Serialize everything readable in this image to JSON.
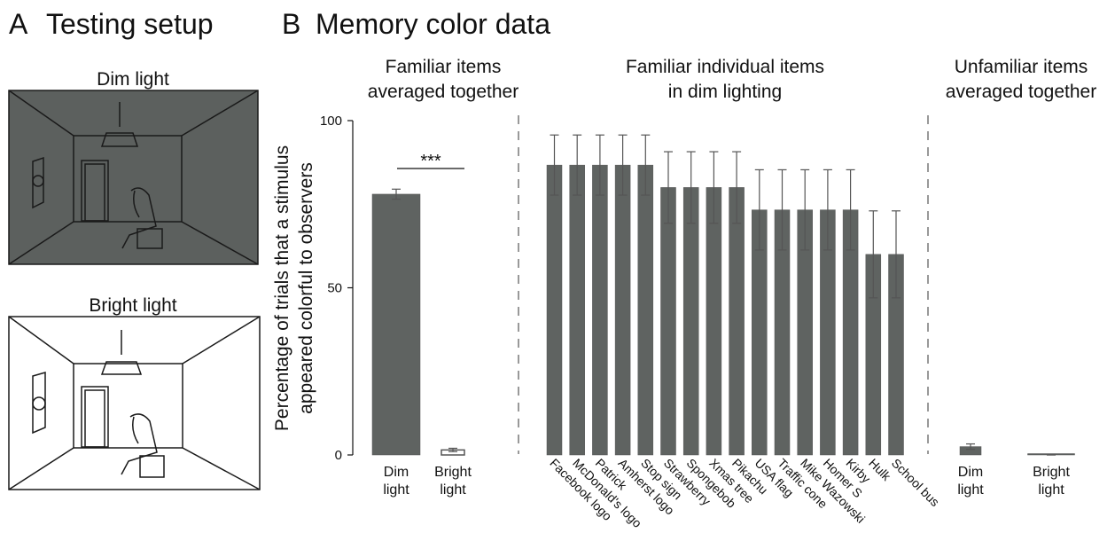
{
  "panels": [
    {
      "letter": "A",
      "title": "Testing setup",
      "rooms": [
        "Dim light",
        "Bright light"
      ]
    },
    {
      "letter": "B",
      "title": "Memory color data"
    }
  ],
  "chart_data": [
    {
      "type": "bar",
      "title": [
        "Familiar items",
        "averaged together"
      ],
      "ylabel": [
        "Percentage of trials that a stimulus",
        "appeared colorful to observers"
      ],
      "categories": [
        "Dim light",
        "Bright light"
      ],
      "values": [
        78,
        1.5
      ],
      "errors": [
        1.5,
        0.5
      ],
      "colors": [
        "#5f6361",
        "#ffffff"
      ],
      "ylim": [
        0,
        100
      ],
      "yticks": [
        0,
        50,
        100
      ],
      "annotation": "***"
    },
    {
      "type": "bar",
      "title": [
        "Familiar individual items",
        "in dim lighting"
      ],
      "categories": [
        "Facebook logo",
        "McDonald's logo",
        "Patrick",
        "Amherst logo",
        "Stop sign",
        "Strawberry",
        "Spongebob",
        "Xmas tree",
        "Pikachu",
        "USA flag",
        "Traffic cone",
        "Mike Wazowski",
        "Homer S",
        "Kirby",
        "Hulk",
        "School bus"
      ],
      "values": [
        86.7,
        86.7,
        86.7,
        86.7,
        86.7,
        80,
        80,
        80,
        80,
        73.3,
        73.3,
        73.3,
        73.3,
        73.3,
        60,
        60
      ],
      "errors": [
        9,
        9,
        9,
        9,
        9,
        10.7,
        10.7,
        10.7,
        10.7,
        12,
        12,
        12,
        12,
        12,
        13,
        13
      ],
      "color": "#5f6361",
      "ylim": [
        0,
        100
      ]
    },
    {
      "type": "bar",
      "title": [
        "Unfamiliar items",
        "averaged together"
      ],
      "categories": [
        "Dim light",
        "Bright light"
      ],
      "values": [
        2.5,
        0
      ],
      "errors": [
        0.8,
        0
      ],
      "colors": [
        "#5f6361",
        "#5f6361"
      ],
      "ylim": [
        0,
        100
      ]
    }
  ]
}
